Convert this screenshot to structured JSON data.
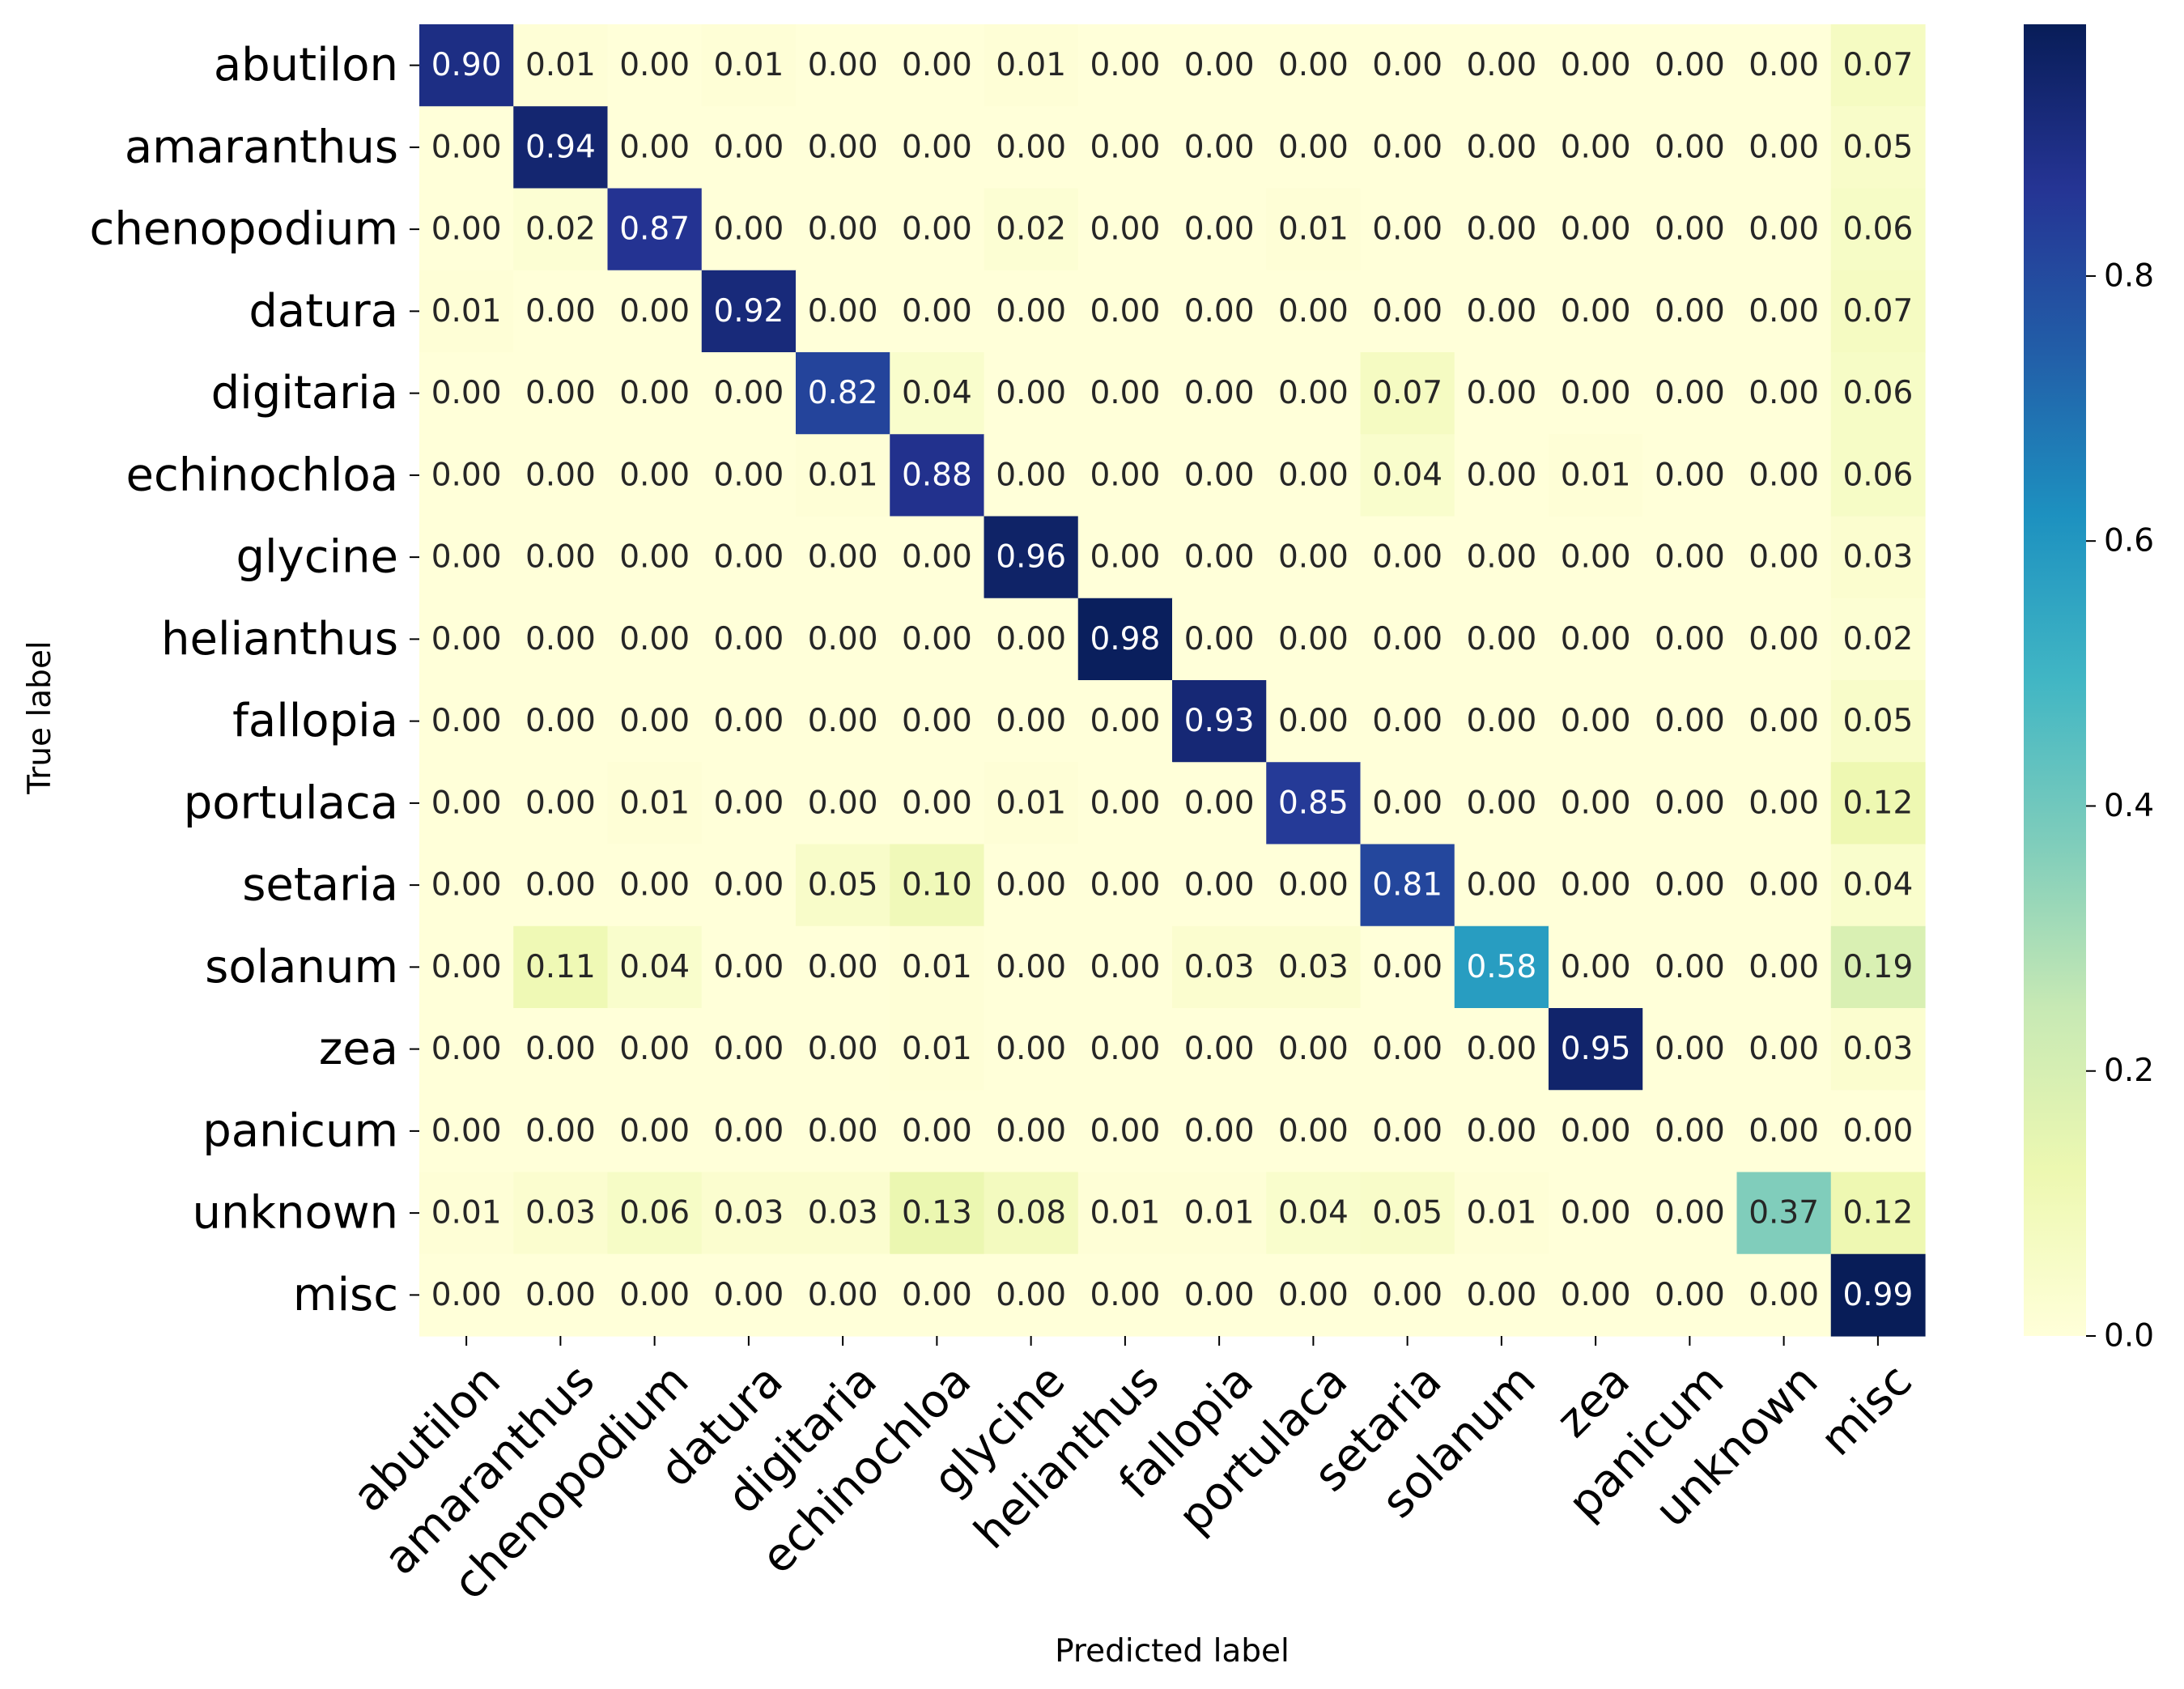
{
  "chart_data": {
    "type": "heatmap",
    "xlabel": "Predicted label",
    "ylabel": "True label",
    "x_categories": [
      "abutilon",
      "amaranthus",
      "chenopodium",
      "datura",
      "digitaria",
      "echinochloa",
      "glycine",
      "helianthus",
      "fallopia",
      "portulaca",
      "setaria",
      "solanum",
      "zea",
      "panicum",
      "unknown",
      "misc"
    ],
    "y_categories": [
      "abutilon",
      "amaranthus",
      "chenopodium",
      "datura",
      "digitaria",
      "echinochloa",
      "glycine",
      "helianthus",
      "fallopia",
      "portulaca",
      "setaria",
      "solanum",
      "zea",
      "panicum",
      "unknown",
      "misc"
    ],
    "values": [
      [
        0.9,
        0.01,
        0.0,
        0.01,
        0.0,
        0.0,
        0.01,
        0.0,
        0.0,
        0.0,
        0.0,
        0.0,
        0.0,
        0.0,
        0.0,
        0.07
      ],
      [
        0.0,
        0.94,
        0.0,
        0.0,
        0.0,
        0.0,
        0.0,
        0.0,
        0.0,
        0.0,
        0.0,
        0.0,
        0.0,
        0.0,
        0.0,
        0.05
      ],
      [
        0.0,
        0.02,
        0.87,
        0.0,
        0.0,
        0.0,
        0.02,
        0.0,
        0.0,
        0.01,
        0.0,
        0.0,
        0.0,
        0.0,
        0.0,
        0.06
      ],
      [
        0.01,
        0.0,
        0.0,
        0.92,
        0.0,
        0.0,
        0.0,
        0.0,
        0.0,
        0.0,
        0.0,
        0.0,
        0.0,
        0.0,
        0.0,
        0.07
      ],
      [
        0.0,
        0.0,
        0.0,
        0.0,
        0.82,
        0.04,
        0.0,
        0.0,
        0.0,
        0.0,
        0.07,
        0.0,
        0.0,
        0.0,
        0.0,
        0.06
      ],
      [
        0.0,
        0.0,
        0.0,
        0.0,
        0.01,
        0.88,
        0.0,
        0.0,
        0.0,
        0.0,
        0.04,
        0.0,
        0.01,
        0.0,
        0.0,
        0.06
      ],
      [
        0.0,
        0.0,
        0.0,
        0.0,
        0.0,
        0.0,
        0.96,
        0.0,
        0.0,
        0.0,
        0.0,
        0.0,
        0.0,
        0.0,
        0.0,
        0.03
      ],
      [
        0.0,
        0.0,
        0.0,
        0.0,
        0.0,
        0.0,
        0.0,
        0.98,
        0.0,
        0.0,
        0.0,
        0.0,
        0.0,
        0.0,
        0.0,
        0.02
      ],
      [
        0.0,
        0.0,
        0.0,
        0.0,
        0.0,
        0.0,
        0.0,
        0.0,
        0.93,
        0.0,
        0.0,
        0.0,
        0.0,
        0.0,
        0.0,
        0.05
      ],
      [
        0.0,
        0.0,
        0.01,
        0.0,
        0.0,
        0.0,
        0.01,
        0.0,
        0.0,
        0.85,
        0.0,
        0.0,
        0.0,
        0.0,
        0.0,
        0.12
      ],
      [
        0.0,
        0.0,
        0.0,
        0.0,
        0.05,
        0.1,
        0.0,
        0.0,
        0.0,
        0.0,
        0.81,
        0.0,
        0.0,
        0.0,
        0.0,
        0.04
      ],
      [
        0.0,
        0.11,
        0.04,
        0.0,
        0.0,
        0.01,
        0.0,
        0.0,
        0.03,
        0.03,
        0.0,
        0.58,
        0.0,
        0.0,
        0.0,
        0.19
      ],
      [
        0.0,
        0.0,
        0.0,
        0.0,
        0.0,
        0.01,
        0.0,
        0.0,
        0.0,
        0.0,
        0.0,
        0.0,
        0.95,
        0.0,
        0.0,
        0.03
      ],
      [
        0.0,
        0.0,
        0.0,
        0.0,
        0.0,
        0.0,
        0.0,
        0.0,
        0.0,
        0.0,
        0.0,
        0.0,
        0.0,
        0.0,
        0.0,
        0.0
      ],
      [
        0.01,
        0.03,
        0.06,
        0.03,
        0.03,
        0.13,
        0.08,
        0.01,
        0.01,
        0.04,
        0.05,
        0.01,
        0.0,
        0.0,
        0.37,
        0.12
      ],
      [
        0.0,
        0.0,
        0.0,
        0.0,
        0.0,
        0.0,
        0.0,
        0.0,
        0.0,
        0.0,
        0.0,
        0.0,
        0.0,
        0.0,
        0.0,
        0.99
      ]
    ],
    "value_format": "0.00",
    "colormap": "YlGnBu",
    "colorbar": {
      "range": [
        0.0,
        0.99
      ],
      "ticks": [
        0.0,
        0.2,
        0.4,
        0.6,
        0.8
      ],
      "tick_labels": [
        "0.0",
        "0.2",
        "0.4",
        "0.6",
        "0.8"
      ]
    },
    "legend": "right"
  }
}
